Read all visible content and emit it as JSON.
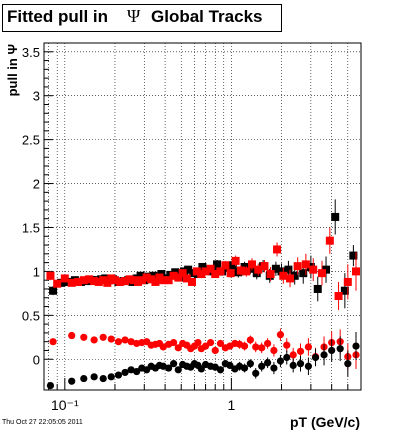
{
  "title": {
    "prefix": "Fitted pull in",
    "symbol": "Ψ",
    "suffix": "Global Tracks"
  },
  "timestamp": "Thu Oct 27 22:05:05 2011",
  "colors": {
    "black": "#000000",
    "red": "#ff0000"
  },
  "chart_data": {
    "type": "scatter",
    "x_scale": "log",
    "xlim": [
      0.075,
      6.0
    ],
    "ylim": [
      -0.35,
      3.6
    ],
    "xlabel": "pT (GeV/c)",
    "ylabel": "pull in Ψ",
    "x_ticks": [
      {
        "value": 0.1,
        "label": "10⁻¹"
      },
      {
        "value": 1,
        "label": "1"
      }
    ],
    "y_ticks": [
      0,
      0.5,
      1,
      1.5,
      2,
      2.5,
      3,
      3.5
    ],
    "grid": true,
    "series": [
      {
        "marker": "square",
        "color": "black",
        "x": [
          0.085,
          0.095,
          0.105,
          0.115,
          0.125,
          0.135,
          0.145,
          0.155,
          0.165,
          0.175,
          0.185,
          0.195,
          0.21,
          0.225,
          0.24,
          0.255,
          0.27,
          0.285,
          0.3,
          0.32,
          0.34,
          0.36,
          0.38,
          0.4,
          0.43,
          0.46,
          0.49,
          0.52,
          0.55,
          0.59,
          0.63,
          0.67,
          0.72,
          0.77,
          0.82,
          0.88,
          0.95,
          1.02,
          1.1,
          1.2,
          1.3,
          1.42,
          1.55,
          1.7,
          1.85,
          2.0,
          2.2,
          2.4,
          2.7,
          3.0,
          3.3,
          3.7,
          4.2,
          4.8,
          5.4
        ],
        "y": [
          0.78,
          0.87,
          0.88,
          0.9,
          0.88,
          0.89,
          0.9,
          0.9,
          0.91,
          0.92,
          0.9,
          0.91,
          0.88,
          0.89,
          0.9,
          0.88,
          0.92,
          0.95,
          0.9,
          0.94,
          0.95,
          0.93,
          0.97,
          0.92,
          0.96,
          0.99,
          0.93,
          1.0,
          1.02,
          0.98,
          0.97,
          1.05,
          1.02,
          1.0,
          1.08,
          1.0,
          1.04,
          1.07,
          0.99,
          1.05,
          1.03,
          0.98,
          1.06,
          0.95,
          1.03,
          1.0,
          1.02,
          0.95,
          0.98,
          1.05,
          0.8,
          1.02,
          1.62,
          0.78,
          1.18
        ],
        "err": [
          0.05,
          0.03,
          0.03,
          0.02,
          0.02,
          0.02,
          0.02,
          0.02,
          0.02,
          0.02,
          0.02,
          0.02,
          0.02,
          0.02,
          0.02,
          0.02,
          0.02,
          0.02,
          0.02,
          0.02,
          0.02,
          0.02,
          0.03,
          0.03,
          0.03,
          0.03,
          0.03,
          0.03,
          0.03,
          0.03,
          0.04,
          0.04,
          0.04,
          0.04,
          0.05,
          0.05,
          0.05,
          0.05,
          0.06,
          0.06,
          0.06,
          0.07,
          0.07,
          0.08,
          0.08,
          0.09,
          0.1,
          0.1,
          0.12,
          0.13,
          0.14,
          0.15,
          0.2,
          0.2,
          0.12
        ]
      },
      {
        "marker": "square",
        "color": "red",
        "x": [
          0.082,
          0.09,
          0.1,
          0.11,
          0.12,
          0.13,
          0.14,
          0.15,
          0.16,
          0.17,
          0.18,
          0.19,
          0.2,
          0.215,
          0.23,
          0.245,
          0.26,
          0.275,
          0.29,
          0.31,
          0.33,
          0.35,
          0.37,
          0.39,
          0.42,
          0.45,
          0.48,
          0.51,
          0.54,
          0.58,
          0.62,
          0.66,
          0.7,
          0.75,
          0.8,
          0.86,
          0.92,
          0.99,
          1.06,
          1.14,
          1.23,
          1.33,
          1.45,
          1.58,
          1.72,
          1.88,
          2.05,
          2.25,
          2.5,
          2.8,
          3.1,
          3.5,
          3.9,
          4.4,
          5.0,
          5.6
        ],
        "y": [
          0.95,
          0.86,
          0.92,
          0.87,
          0.88,
          0.9,
          0.91,
          0.89,
          0.88,
          0.9,
          0.87,
          0.92,
          0.9,
          0.88,
          0.89,
          0.91,
          0.9,
          0.88,
          0.9,
          0.93,
          0.91,
          0.88,
          0.93,
          0.9,
          0.9,
          0.95,
          0.93,
          0.98,
          0.92,
          0.88,
          1.0,
          0.97,
          1.0,
          1.03,
          0.97,
          1.0,
          1.07,
          0.98,
          1.12,
          1.01,
          1.0,
          1.08,
          1.02,
          1.06,
          0.97,
          1.25,
          0.95,
          0.92,
          1.06,
          1.08,
          1.02,
          0.98,
          1.35,
          0.72,
          0.88,
          1.0
        ],
        "err": [
          0.05,
          0.03,
          0.03,
          0.02,
          0.02,
          0.02,
          0.02,
          0.02,
          0.02,
          0.02,
          0.02,
          0.02,
          0.02,
          0.02,
          0.02,
          0.02,
          0.02,
          0.02,
          0.02,
          0.02,
          0.02,
          0.02,
          0.02,
          0.02,
          0.03,
          0.03,
          0.03,
          0.03,
          0.03,
          0.03,
          0.03,
          0.04,
          0.04,
          0.04,
          0.04,
          0.05,
          0.05,
          0.05,
          0.06,
          0.06,
          0.06,
          0.07,
          0.07,
          0.07,
          0.08,
          0.08,
          0.09,
          0.1,
          0.1,
          0.12,
          0.13,
          0.14,
          0.15,
          0.16,
          0.2,
          0.22
        ]
      },
      {
        "marker": "circle",
        "color": "red",
        "x": [
          0.085,
          0.11,
          0.13,
          0.15,
          0.17,
          0.19,
          0.21,
          0.23,
          0.25,
          0.27,
          0.29,
          0.31,
          0.33,
          0.35,
          0.37,
          0.39,
          0.42,
          0.45,
          0.48,
          0.51,
          0.54,
          0.57,
          0.6,
          0.63,
          0.66,
          0.7,
          0.75,
          0.8,
          0.86,
          0.92,
          0.98,
          1.05,
          1.12,
          1.2,
          1.3,
          1.4,
          1.52,
          1.65,
          1.8,
          1.97,
          2.15,
          2.35,
          2.6,
          2.9,
          3.2,
          3.6,
          4.0,
          4.5,
          5.0,
          5.6
        ],
        "y": [
          0.2,
          0.27,
          0.25,
          0.22,
          0.25,
          0.23,
          0.2,
          0.22,
          0.2,
          0.18,
          0.19,
          0.2,
          0.16,
          0.17,
          0.18,
          0.14,
          0.17,
          0.19,
          0.13,
          0.18,
          0.16,
          0.12,
          0.15,
          0.19,
          0.12,
          0.15,
          0.19,
          0.1,
          0.18,
          0.13,
          0.15,
          0.18,
          0.17,
          0.15,
          0.22,
          0.14,
          0.13,
          0.18,
          0.1,
          0.28,
          0.16,
          0.05,
          0.09,
          0.14,
          0.03,
          0.14,
          0.19,
          0.2,
          0.03,
          0.05
        ],
        "err": [
          0.03,
          0.02,
          0.02,
          0.02,
          0.02,
          0.02,
          0.02,
          0.02,
          0.02,
          0.02,
          0.02,
          0.02,
          0.02,
          0.02,
          0.02,
          0.02,
          0.02,
          0.02,
          0.02,
          0.02,
          0.02,
          0.03,
          0.03,
          0.03,
          0.03,
          0.03,
          0.03,
          0.03,
          0.04,
          0.04,
          0.04,
          0.04,
          0.05,
          0.05,
          0.05,
          0.06,
          0.06,
          0.06,
          0.07,
          0.07,
          0.08,
          0.08,
          0.09,
          0.1,
          0.1,
          0.12,
          0.13,
          0.14,
          0.15,
          0.16
        ]
      },
      {
        "marker": "circle",
        "color": "black",
        "x": [
          0.082,
          0.11,
          0.13,
          0.15,
          0.17,
          0.19,
          0.21,
          0.23,
          0.25,
          0.27,
          0.29,
          0.31,
          0.33,
          0.35,
          0.37,
          0.39,
          0.42,
          0.45,
          0.48,
          0.51,
          0.54,
          0.57,
          0.6,
          0.63,
          0.66,
          0.7,
          0.75,
          0.8,
          0.86,
          0.92,
          0.98,
          1.05,
          1.12,
          1.2,
          1.3,
          1.4,
          1.52,
          1.65,
          1.8,
          1.97,
          2.15,
          2.35,
          2.6,
          2.9,
          3.2,
          3.6,
          4.0,
          4.5,
          5.0,
          5.6
        ],
        "y": [
          -0.3,
          -0.25,
          -0.22,
          -0.2,
          -0.22,
          -0.2,
          -0.18,
          -0.15,
          -0.12,
          -0.14,
          -0.1,
          -0.12,
          -0.08,
          -0.1,
          -0.07,
          -0.08,
          -0.1,
          -0.05,
          -0.12,
          -0.06,
          -0.08,
          -0.09,
          -0.05,
          -0.07,
          -0.11,
          -0.06,
          -0.08,
          -0.09,
          -0.12,
          -0.05,
          -0.07,
          -0.11,
          -0.08,
          -0.1,
          -0.05,
          -0.16,
          -0.08,
          -0.04,
          -0.1,
          -0.02,
          0.02,
          -0.07,
          -0.05,
          -0.08,
          0.02,
          0.05,
          0.1,
          0.12,
          -0.05,
          0.15
        ],
        "err": [
          0.03,
          0.02,
          0.02,
          0.02,
          0.02,
          0.02,
          0.02,
          0.02,
          0.02,
          0.02,
          0.02,
          0.02,
          0.02,
          0.02,
          0.02,
          0.02,
          0.02,
          0.02,
          0.02,
          0.02,
          0.02,
          0.03,
          0.03,
          0.03,
          0.03,
          0.03,
          0.03,
          0.03,
          0.04,
          0.04,
          0.04,
          0.04,
          0.05,
          0.05,
          0.05,
          0.06,
          0.06,
          0.06,
          0.07,
          0.07,
          0.08,
          0.08,
          0.09,
          0.1,
          0.1,
          0.12,
          0.13,
          0.14,
          0.15,
          0.16
        ]
      }
    ]
  }
}
